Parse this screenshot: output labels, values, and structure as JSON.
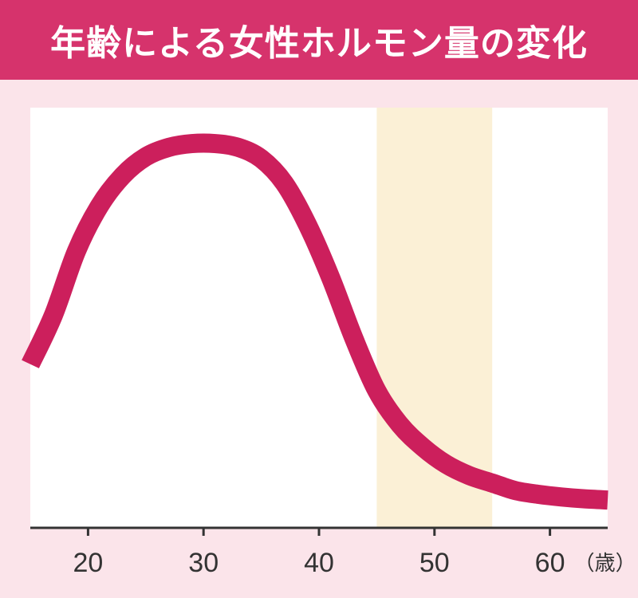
{
  "chart_data": {
    "type": "line",
    "title": "年齢による女性ホルモン量の変化",
    "xlabel": "",
    "ylabel": "",
    "x_unit": "（歳）",
    "xlim": [
      15,
      65
    ],
    "ylim": [
      0,
      100
    ],
    "x_ticks": [
      20,
      30,
      40,
      50,
      60
    ],
    "x_tick_labels": [
      "20",
      "30",
      "40",
      "50",
      "60"
    ],
    "highlight_band": {
      "x_start": 45,
      "x_end": 55,
      "color": "#fbf0d6"
    },
    "series": [
      {
        "color": "#cc1f5c",
        "x": [
          15,
          17,
          19,
          21,
          23,
          25,
          27,
          29,
          31,
          33,
          35,
          37,
          39,
          41,
          43,
          45,
          47,
          49,
          51,
          53,
          55,
          57,
          59,
          61,
          63,
          65
        ],
        "y": [
          40,
          53,
          70,
          82,
          90,
          95,
          97.5,
          98.5,
          98.5,
          97.5,
          94.5,
          88,
          77,
          63,
          47,
          33,
          24,
          18,
          13.5,
          10.5,
          8.5,
          6.5,
          5.5,
          4.8,
          4.3,
          4
        ]
      }
    ],
    "grid": false,
    "legend": "none"
  },
  "colors": {
    "header": "#d6336c",
    "background": "#fbe4ea",
    "plot_area": "#ffffff",
    "axis": "#333333"
  }
}
